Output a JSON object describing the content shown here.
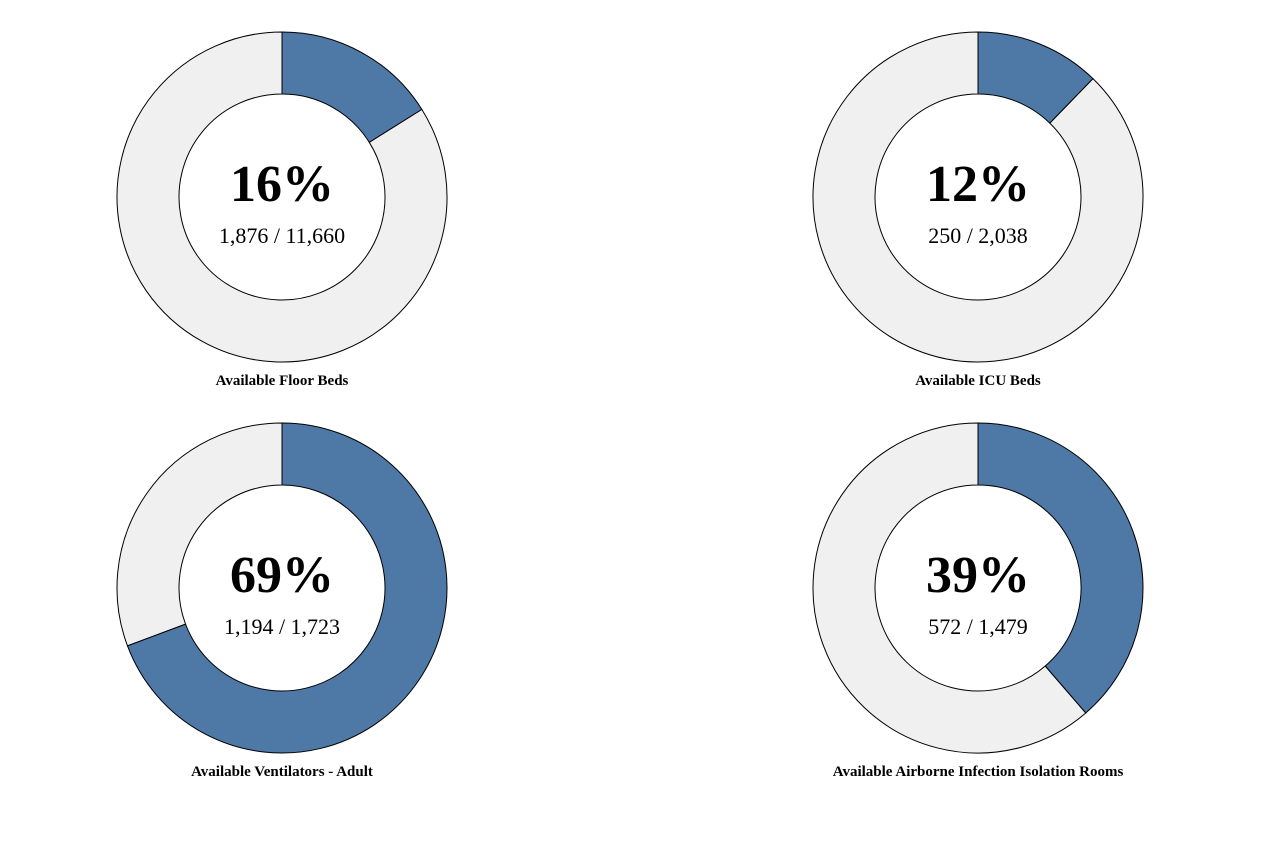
{
  "colors": {
    "available": "#4e78a6",
    "remaining": "#f0f0f0",
    "stroke": "#000000"
  },
  "chart_data": [
    {
      "type": "pie",
      "label": "Available Floor Beds",
      "percent_text": "16%",
      "fraction_text": "1,876 / 11,660",
      "available": 1876,
      "total": 11660
    },
    {
      "type": "pie",
      "label": "Available ICU Beds",
      "percent_text": "12%",
      "fraction_text": "250 / 2,038",
      "available": 250,
      "total": 2038
    },
    {
      "type": "pie",
      "label": "Available Ventilators - Adult",
      "percent_text": "69%",
      "fraction_text": "1,194 / 1,723",
      "available": 1194,
      "total": 1723
    },
    {
      "type": "pie",
      "label": "Available Airborne Infection Isolation Rooms",
      "percent_text": "39%",
      "fraction_text": "572 / 1,479",
      "available": 572,
      "total": 1479
    }
  ]
}
